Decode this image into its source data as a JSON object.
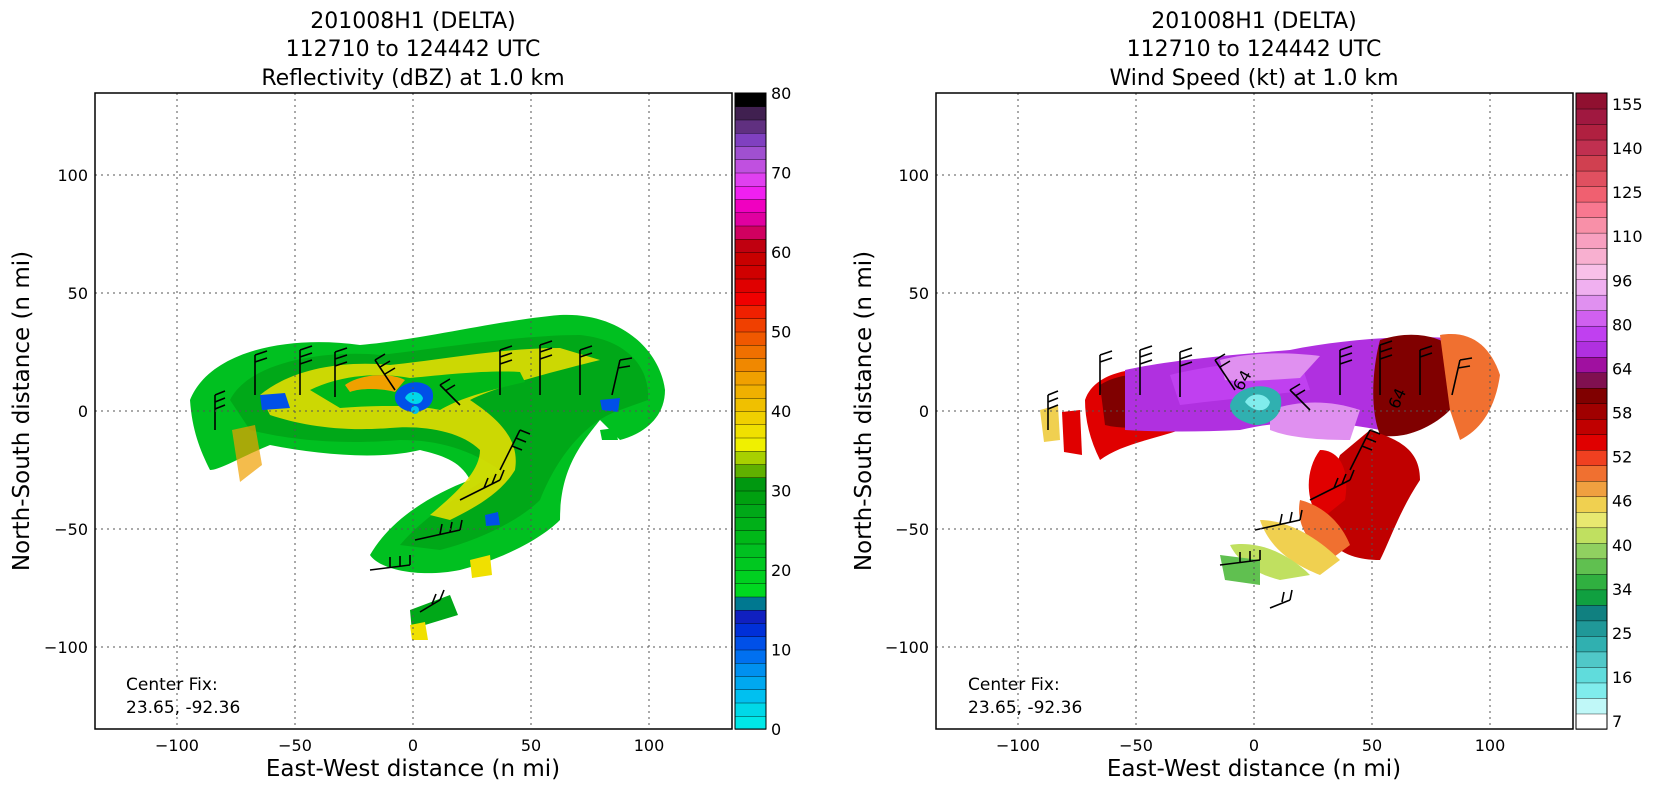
{
  "chart_data": [
    {
      "type": "heatmap",
      "title": [
        "201008H1 (DELTA)",
        "112710 to 124442 UTC",
        "Reflectivity (dBZ) at 1.0 km"
      ],
      "xlabel": "East-West distance (n mi)",
      "ylabel": "North-South distance (n mi)",
      "xlim": [
        -135,
        135
      ],
      "ylim": [
        -135,
        135
      ],
      "xticks": [
        -100,
        -50,
        0,
        50,
        100
      ],
      "yticks": [
        -100,
        -50,
        0,
        50,
        100
      ],
      "grid": true,
      "annotation": [
        "Center Fix:",
        "23.65, -92.36"
      ],
      "colorbar": {
        "label_values": [
          0,
          10,
          20,
          30,
          40,
          50,
          60,
          70,
          80
        ],
        "range": [
          0,
          80
        ],
        "colors": [
          "#00e8e8",
          "#00d8e8",
          "#00c0f0",
          "#00a8f0",
          "#0090f0",
          "#0070f0",
          "#0050e8",
          "#0030d8",
          "#1020c0",
          "#007890",
          "#00d820",
          "#00d020",
          "#00c820",
          "#00c020",
          "#00b818",
          "#00b018",
          "#00a818",
          "#00a010",
          "#009810",
          "#60b000",
          "#a8d000",
          "#f0f000",
          "#f0e000",
          "#f0d000",
          "#f0c000",
          "#f0b000",
          "#f0a000",
          "#f08800",
          "#f07000",
          "#f05800",
          "#f04000",
          "#f02000",
          "#f00000",
          "#e00000",
          "#d00000",
          "#c80000",
          "#c00010",
          "#d00060",
          "#e000a0",
          "#f000c0",
          "#f020f0",
          "#e040f0",
          "#c050e0",
          "#a050d0",
          "#8040c0",
          "#603080",
          "#402050",
          "#000000"
        ]
      }
    },
    {
      "type": "heatmap",
      "title": [
        "201008H1 (DELTA)",
        "112710 to 124442 UTC",
        "Wind Speed (kt) at 1.0 km"
      ],
      "xlabel": "East-West distance (n mi)",
      "ylabel": "North-South distance (n mi)",
      "xlim": [
        -135,
        135
      ],
      "ylim": [
        -135,
        135
      ],
      "xticks": [
        -100,
        -50,
        0,
        50,
        100
      ],
      "yticks": [
        -100,
        -50,
        0,
        50,
        100
      ],
      "grid": true,
      "annotation": [
        "Center Fix:",
        "23.65, -92.36"
      ],
      "contour_labels": [
        "64",
        "64"
      ],
      "colorbar": {
        "label_values": [
          "7",
          "16",
          "25",
          "34",
          "40",
          "46",
          "52",
          "58",
          "64",
          "80",
          "96",
          "110",
          "125",
          "140",
          "155"
        ],
        "colors": [
          "#ffffff",
          "#c0f8f8",
          "#80ecec",
          "#60dcdc",
          "#50c8c8",
          "#30b0b0",
          "#209898",
          "#108080",
          "#10a040",
          "#30b040",
          "#60c050",
          "#90d060",
          "#c0e060",
          "#e8e870",
          "#f0d050",
          "#f0a040",
          "#f07030",
          "#f04020",
          "#e00000",
          "#c00000",
          "#a00000",
          "#800000",
          "#801050",
          "#a010a0",
          "#b030e0",
          "#c040f0",
          "#d060f0",
          "#e090f0",
          "#f0b0f0",
          "#f8c0e8",
          "#f8b0d0",
          "#f8a0c0",
          "#f890a8",
          "#f87890",
          "#f06070",
          "#e05060",
          "#d04050",
          "#c03050",
          "#b02040",
          "#a01840",
          "#901030"
        ]
      }
    }
  ]
}
